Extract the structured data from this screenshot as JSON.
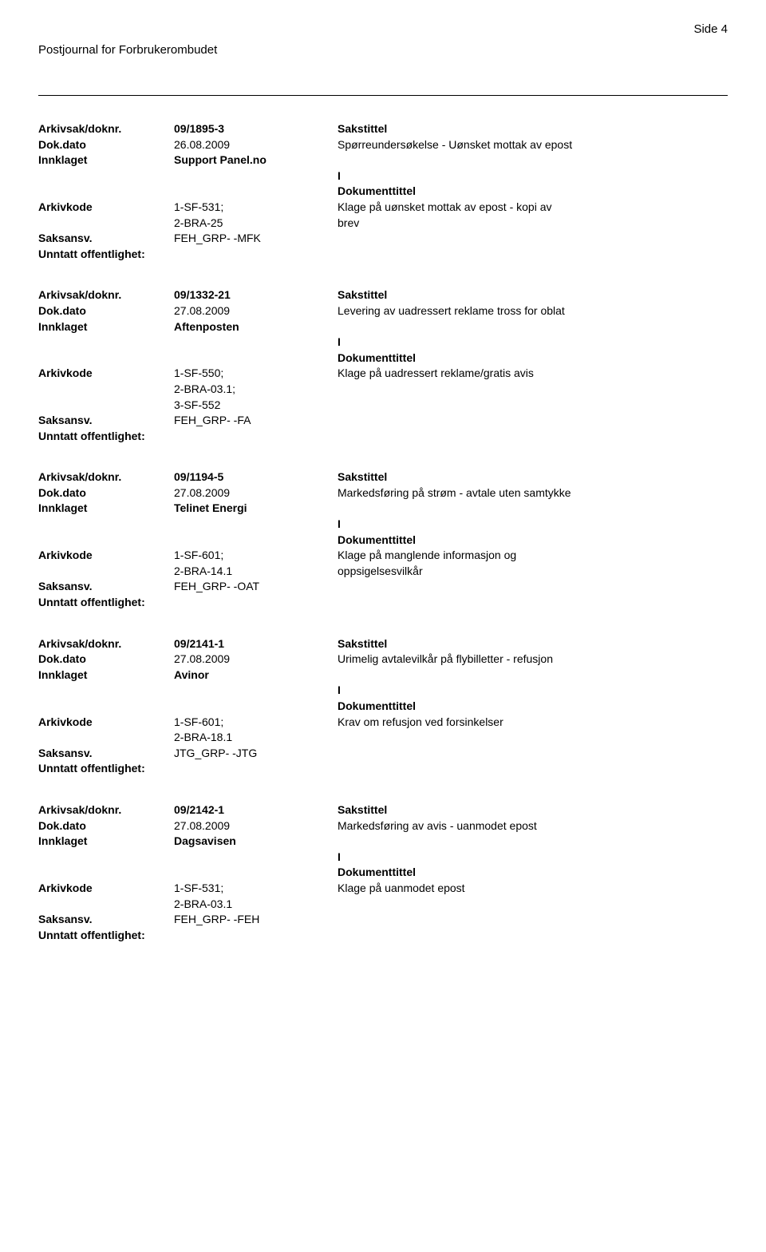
{
  "header": {
    "title": "Postjournal for Forbrukerombudet",
    "page": "Side 4"
  },
  "records": [
    {
      "arkivsak_doknr": "09/1895-3",
      "sakstittel_label": "Sakstittel",
      "dok_dato": "26.08.2009",
      "dok_desc": "Spørreundersøkelse - Uønsket mottak av epost",
      "innklaget": "Support Panel.no",
      "doc_flag": "I",
      "doc_title_label": "Dokumenttittel",
      "arkivkode_lines": [
        "1-SF-531;",
        "2-BRA-25"
      ],
      "arkivkode_desc_lines": [
        "Klage på uønsket mottak av epost - kopi av",
        "brev"
      ],
      "saksansv": "FEH_GRP- -MFK"
    },
    {
      "arkivsak_doknr": "09/1332-21",
      "sakstittel_label": "Sakstittel",
      "dok_dato": "27.08.2009",
      "dok_desc": "Levering av uadressert reklame tross for oblat",
      "innklaget": "Aftenposten",
      "doc_flag": "I",
      "doc_title_label": "Dokumenttittel",
      "arkivkode_lines": [
        "1-SF-550;",
        "2-BRA-03.1;",
        "3-SF-552"
      ],
      "arkivkode_desc_lines": [
        "Klage på uadressert reklame/gratis avis"
      ],
      "saksansv": "FEH_GRP- -FA"
    },
    {
      "arkivsak_doknr": "09/1194-5",
      "sakstittel_label": "Sakstittel",
      "dok_dato": "27.08.2009",
      "dok_desc": "Markedsføring på strøm - avtale uten samtykke",
      "innklaget": "Telinet Energi",
      "doc_flag": "I",
      "doc_title_label": "Dokumenttittel",
      "arkivkode_lines": [
        "1-SF-601;",
        "2-BRA-14.1"
      ],
      "arkivkode_desc_lines": [
        "Klage på manglende informasjon og",
        "oppsigelsesvilkår"
      ],
      "saksansv": "FEH_GRP- -OAT"
    },
    {
      "arkivsak_doknr": "09/2141-1",
      "sakstittel_label": "Sakstittel",
      "dok_dato": "27.08.2009",
      "dok_desc": "Urimelig avtalevilkår på flybilletter -  refusjon",
      "innklaget": "Avinor",
      "doc_flag": "I",
      "doc_title_label": "Dokumenttittel",
      "arkivkode_lines": [
        "1-SF-601;",
        "2-BRA-18.1"
      ],
      "arkivkode_desc_lines": [
        "Krav om refusjon ved forsinkelser"
      ],
      "saksansv": "JTG_GRP- -JTG"
    },
    {
      "arkivsak_doknr": "09/2142-1",
      "sakstittel_label": "Sakstittel",
      "dok_dato": "27.08.2009",
      "dok_desc": "Markedsføring av avis - uanmodet epost",
      "innklaget": "Dagsavisen",
      "doc_flag": "I",
      "doc_title_label": "Dokumenttittel",
      "arkivkode_lines": [
        "1-SF-531;",
        "2-BRA-03.1"
      ],
      "arkivkode_desc_lines": [
        "Klage på uanmodet epost"
      ],
      "saksansv": "FEH_GRP- -FEH"
    }
  ],
  "labels": {
    "arkivsak": "Arkivsak/doknr.",
    "dokdato": "Dok.dato",
    "innklaget": "Innklaget",
    "arkivkode": "Arkivkode",
    "saksansv": "Saksansv.",
    "unntatt": "Unntatt offentlighet:"
  }
}
